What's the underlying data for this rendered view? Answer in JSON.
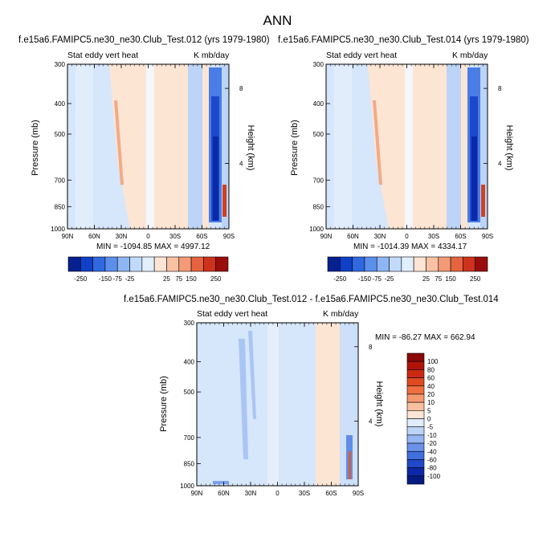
{
  "figure_title": "ANN",
  "panels": [
    {
      "title": "f.e15a6.FAMIPC5.ne30_ne30.Club_Test.012 (yrs 1979-1980)",
      "variable_label": "Stat eddy vert heat",
      "units_label": "K mb/day",
      "stats_text": "MIN = -1094.85   MAX = 4997.12",
      "ylabel": "Pressure (mb)",
      "right_label": "Height (km)"
    },
    {
      "title": "f.e15a6.FAMIPC5.ne30_ne30.Club_Test.014 (yrs 1979-1980)",
      "variable_label": "Stat eddy vert heat",
      "units_label": "K mb/day",
      "stats_text": "MIN = -1014.39   MAX = 4334.17",
      "ylabel": "Pressure (mb)",
      "right_label": "Height (km)"
    },
    {
      "title": "f.e15a6.FAMIPC5.ne30_ne30.Club_Test.012 - f.e15a6.FAMIPC5.ne30_ne30.Club_Test.014",
      "variable_label": "Stat eddy vert heat",
      "units_label": "K mb/day",
      "stats_text": "MIN = -86.27   MAX = 662.94",
      "ylabel": "Pressure (mb)",
      "right_label": "Height (km)"
    }
  ],
  "chart_data": [
    {
      "type": "heatmap",
      "panel": 0,
      "x_ticks": [
        "90N",
        "60N",
        "30N",
        "0",
        "30S",
        "60S",
        "90S"
      ],
      "y_ticks": [
        "300",
        "400",
        "500",
        "700",
        "850",
        "1000"
      ],
      "y_right_ticks": [
        "8",
        "4"
      ],
      "ylim": [
        1000,
        300
      ],
      "y_scale": "log",
      "colorbar_levels": [
        "-250",
        "-150",
        "-75",
        "-25",
        "25",
        "75",
        "150",
        "250"
      ],
      "colorbar_colors": [
        "#06208f",
        "#1040c8",
        "#2f68e0",
        "#5b8fec",
        "#8eb6f4",
        "#c2dafa",
        "#e2eefc",
        "#fde4d4",
        "#f9c2a4",
        "#f39a76",
        "#e6633f",
        "#cf321c",
        "#9a0d0d"
      ]
    },
    {
      "type": "heatmap",
      "panel": 1,
      "x_ticks": [
        "90N",
        "60N",
        "30N",
        "0",
        "30S",
        "60S",
        "90S"
      ],
      "y_ticks": [
        "300",
        "400",
        "500",
        "700",
        "850",
        "1000"
      ],
      "y_right_ticks": [
        "8",
        "4"
      ],
      "ylim": [
        1000,
        300
      ],
      "y_scale": "log",
      "colorbar_levels": [
        "-250",
        "-150",
        "-75",
        "-25",
        "25",
        "75",
        "150",
        "250"
      ],
      "colorbar_colors": [
        "#06208f",
        "#1040c8",
        "#2f68e0",
        "#5b8fec",
        "#8eb6f4",
        "#c2dafa",
        "#e2eefc",
        "#fde4d4",
        "#f9c2a4",
        "#f39a76",
        "#e6633f",
        "#cf321c",
        "#9a0d0d"
      ]
    },
    {
      "type": "heatmap",
      "panel": 2,
      "x_ticks": [
        "90N",
        "60N",
        "30N",
        "0",
        "30S",
        "60S",
        "90S"
      ],
      "y_ticks": [
        "300",
        "400",
        "500",
        "700",
        "850",
        "1000"
      ],
      "y_right_ticks": [
        "8",
        "4"
      ],
      "ylim": [
        1000,
        300
      ],
      "y_scale": "log",
      "colorbar_levels": [
        "100",
        "80",
        "60",
        "40",
        "20",
        "10",
        "5",
        "0",
        "-5",
        "-10",
        "-20",
        "-40",
        "-60",
        "-80",
        "-100"
      ],
      "colorbar_colors": [
        "#8a0808",
        "#b01408",
        "#cc2a10",
        "#e04a20",
        "#ee7040",
        "#f59a6e",
        "#f9c0a0",
        "#fde4d4",
        "#e0ecfc",
        "#bcd4f8",
        "#94b6f2",
        "#6a92ea",
        "#4070de",
        "#2048c8",
        "#0c28a8",
        "#041c80"
      ]
    }
  ]
}
